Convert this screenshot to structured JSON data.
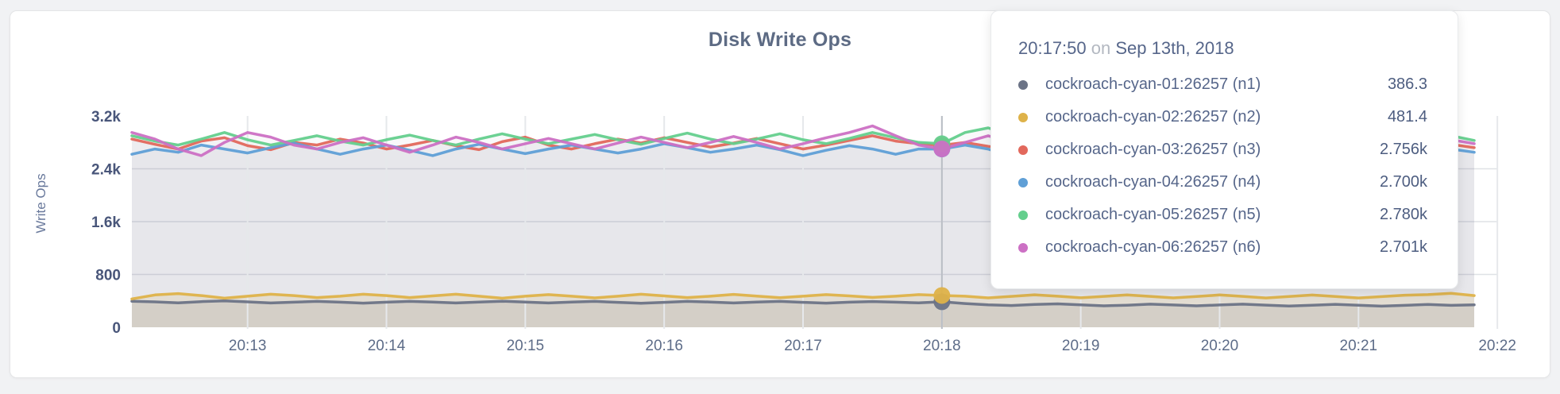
{
  "tooltip": {
    "time": "20:17:50",
    "on_word": "on",
    "date": "Sep 13th, 2018"
  },
  "chart_data": {
    "type": "line",
    "title": "Disk Write Ops",
    "ylabel": "Write Ops",
    "ylim": [
      0,
      3200
    ],
    "grid": "on",
    "legend_position": "tooltip",
    "y_ticks": [
      {
        "value": 0,
        "label": "0"
      },
      {
        "value": 800,
        "label": "800"
      },
      {
        "value": 1600,
        "label": "1.6k"
      },
      {
        "value": 2400,
        "label": "2.4k"
      },
      {
        "value": 3200,
        "label": "3.2k"
      }
    ],
    "x_ticks": [
      "20:13",
      "20:14",
      "20:15",
      "20:16",
      "20:17",
      "20:18",
      "20:19",
      "20:20",
      "20:21",
      "20:22"
    ],
    "x_start": "20:12:10",
    "x_end": "20:21:50",
    "interval_seconds": 10,
    "x_tick_start_seconds": 50,
    "x_tick_interval_seconds": 60,
    "hover_index": 35,
    "hover_time": "20:17:50",
    "series": [
      {
        "id": "n1",
        "label": "cockroach-cyan-01:26257 (n1)",
        "display_value": "386.3",
        "color": "#6b7386",
        "fill": "rgba(100,108,128,0.13)",
        "values": [
          395,
          385,
          370,
          388,
          400,
          385,
          368,
          380,
          392,
          380,
          366,
          380,
          392,
          383,
          368,
          382,
          395,
          382,
          368,
          382,
          392,
          378,
          364,
          378,
          392,
          382,
          368,
          382,
          392,
          378,
          366,
          380,
          390,
          380,
          370,
          386.3,
          360,
          340,
          330,
          345,
          355,
          340,
          325,
          335,
          350,
          338,
          325,
          338,
          350,
          336,
          322,
          335,
          348,
          334,
          320,
          332,
          345,
          332,
          340
        ]
      },
      {
        "id": "n2",
        "label": "cockroach-cyan-02:26257 (n2)",
        "display_value": "481.4",
        "color": "#deb249",
        "fill": "rgba(224,178,75,0.16)",
        "values": [
          430,
          490,
          510,
          480,
          440,
          470,
          500,
          480,
          450,
          470,
          500,
          480,
          450,
          475,
          500,
          470,
          440,
          470,
          495,
          470,
          445,
          470,
          500,
          475,
          450,
          470,
          498,
          472,
          448,
          470,
          495,
          475,
          452,
          470,
          495,
          481.4,
          470,
          445,
          468,
          492,
          470,
          446,
          468,
          490,
          468,
          445,
          466,
          490,
          468,
          444,
          466,
          488,
          466,
          444,
          464,
          486,
          495,
          515,
          480
        ]
      },
      {
        "id": "n3",
        "label": "cockroach-cyan-03:26257 (n3)",
        "display_value": "2.756k",
        "color": "#e2685c",
        "fill": "rgba(110,114,130,0.045)",
        "values": [
          2850,
          2770,
          2700,
          2820,
          2870,
          2750,
          2690,
          2800,
          2760,
          2850,
          2790,
          2700,
          2760,
          2830,
          2750,
          2690,
          2810,
          2880,
          2760,
          2700,
          2780,
          2850,
          2790,
          2870,
          2800,
          2730,
          2790,
          2860,
          2780,
          2700,
          2760,
          2830,
          2900,
          2820,
          2780,
          2756,
          2800,
          2740,
          2690,
          2760,
          2820,
          2760,
          2700,
          2780,
          2850,
          2780,
          2710,
          2770,
          2840,
          2770,
          2700,
          2760,
          2820,
          2760,
          2700,
          2770,
          2830,
          2770,
          2720
        ]
      },
      {
        "id": "n4",
        "label": "cockroach-cyan-04:26257 (n4)",
        "display_value": "2.700k",
        "color": "#5f9fd6",
        "fill": "rgba(110,114,130,0.045)",
        "values": [
          2620,
          2700,
          2650,
          2760,
          2700,
          2640,
          2720,
          2790,
          2700,
          2620,
          2700,
          2760,
          2680,
          2600,
          2700,
          2770,
          2700,
          2630,
          2700,
          2760,
          2700,
          2640,
          2700,
          2780,
          2720,
          2650,
          2700,
          2760,
          2690,
          2600,
          2680,
          2750,
          2700,
          2620,
          2700,
          2700,
          2760,
          2700,
          2580,
          2650,
          2720,
          2680,
          2600,
          2680,
          2750,
          2700,
          2630,
          2700,
          2760,
          2700,
          2640,
          2700,
          2750,
          2690,
          2620,
          2690,
          2750,
          2700,
          2650
        ]
      },
      {
        "id": "n5",
        "label": "cockroach-cyan-05:26257 (n5)",
        "display_value": "2.780k",
        "color": "#64cf8d",
        "fill": "rgba(110,114,130,0.045)",
        "values": [
          2900,
          2820,
          2760,
          2850,
          2950,
          2840,
          2760,
          2830,
          2900,
          2820,
          2760,
          2840,
          2910,
          2830,
          2760,
          2850,
          2930,
          2850,
          2780,
          2850,
          2920,
          2840,
          2770,
          2860,
          2940,
          2850,
          2780,
          2850,
          2930,
          2840,
          2780,
          2860,
          2950,
          2870,
          2800,
          2780,
          2950,
          3020,
          2900,
          2820,
          2880,
          2950,
          2860,
          2790,
          2860,
          2930,
          2850,
          2780,
          2850,
          2920,
          2840,
          2770,
          2840,
          2910,
          2830,
          2770,
          2840,
          2900,
          2830
        ]
      },
      {
        "id": "n6",
        "label": "cockroach-cyan-06:26257 (n6)",
        "display_value": "2.701k",
        "color": "#cc70c4",
        "fill": "rgba(110,114,130,0.045)",
        "values": [
          2950,
          2850,
          2700,
          2600,
          2800,
          2950,
          2880,
          2760,
          2700,
          2800,
          2870,
          2760,
          2650,
          2760,
          2880,
          2800,
          2700,
          2780,
          2860,
          2780,
          2700,
          2790,
          2880,
          2800,
          2720,
          2800,
          2890,
          2800,
          2700,
          2780,
          2870,
          2950,
          3050,
          2900,
          2760,
          2701,
          2800,
          2900,
          2800,
          2700,
          2780,
          2860,
          2780,
          2700,
          2770,
          2850,
          2770,
          2700,
          2760,
          2840,
          2760,
          2700,
          2760,
          2830,
          2760,
          2700,
          2770,
          2840,
          2780
        ]
      }
    ]
  }
}
